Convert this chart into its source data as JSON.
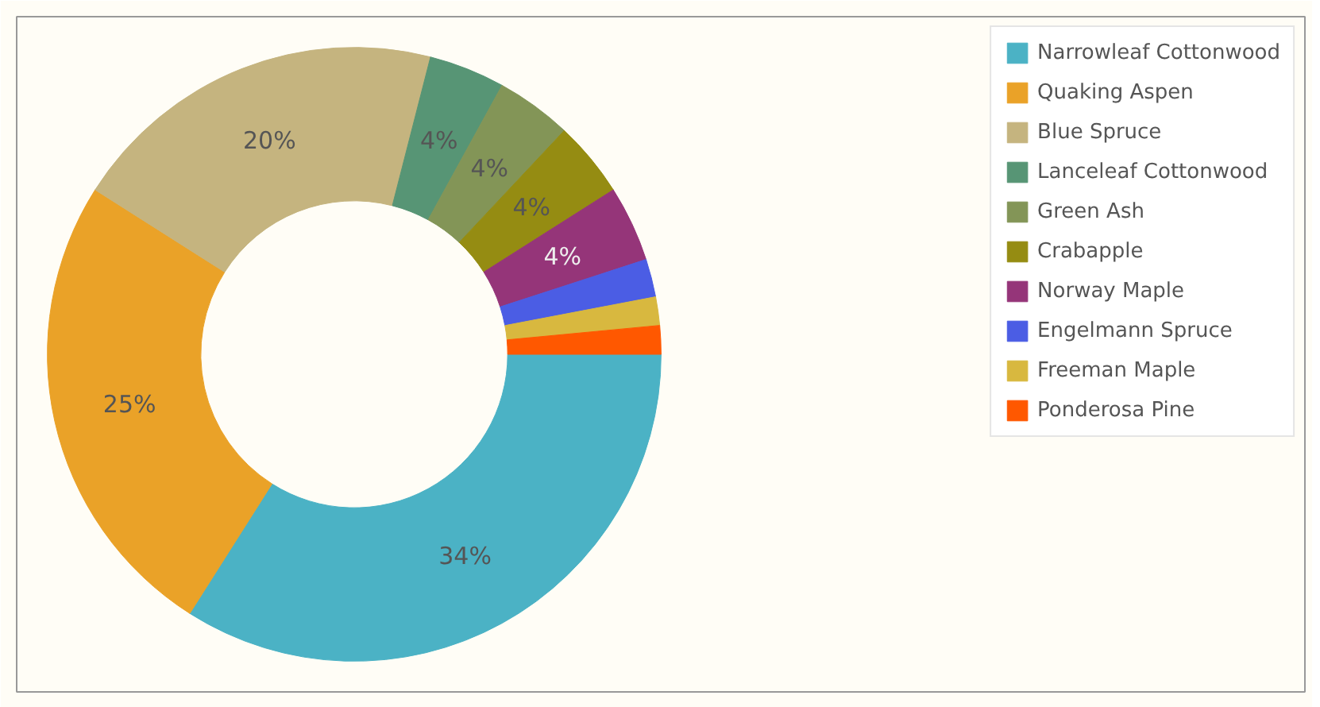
{
  "chart_data": {
    "type": "donut",
    "categories": [
      "Narrowleaf Cottonwood",
      "Quaking Aspen",
      "Blue Spruce",
      "Lanceleaf Cottonwood",
      "Green Ash",
      "Crabapple",
      "Norway Maple",
      "Engelmann Spruce",
      "Freeman Maple",
      "Ponderosa Pine"
    ],
    "values": [
      34,
      25,
      20,
      4,
      4,
      4,
      4,
      2,
      1.5,
      1.5
    ],
    "colors": [
      "#4bb2c5",
      "#eaa228",
      "#c5b47f",
      "#579575",
      "#839557",
      "#958c12",
      "#953579",
      "#4b5de4",
      "#d8b83f",
      "#ff5800"
    ],
    "value_labels": [
      "34%",
      "25%",
      "20%",
      "4%",
      "4%",
      "4%",
      "4%",
      null,
      null,
      null
    ],
    "legend": "right"
  }
}
